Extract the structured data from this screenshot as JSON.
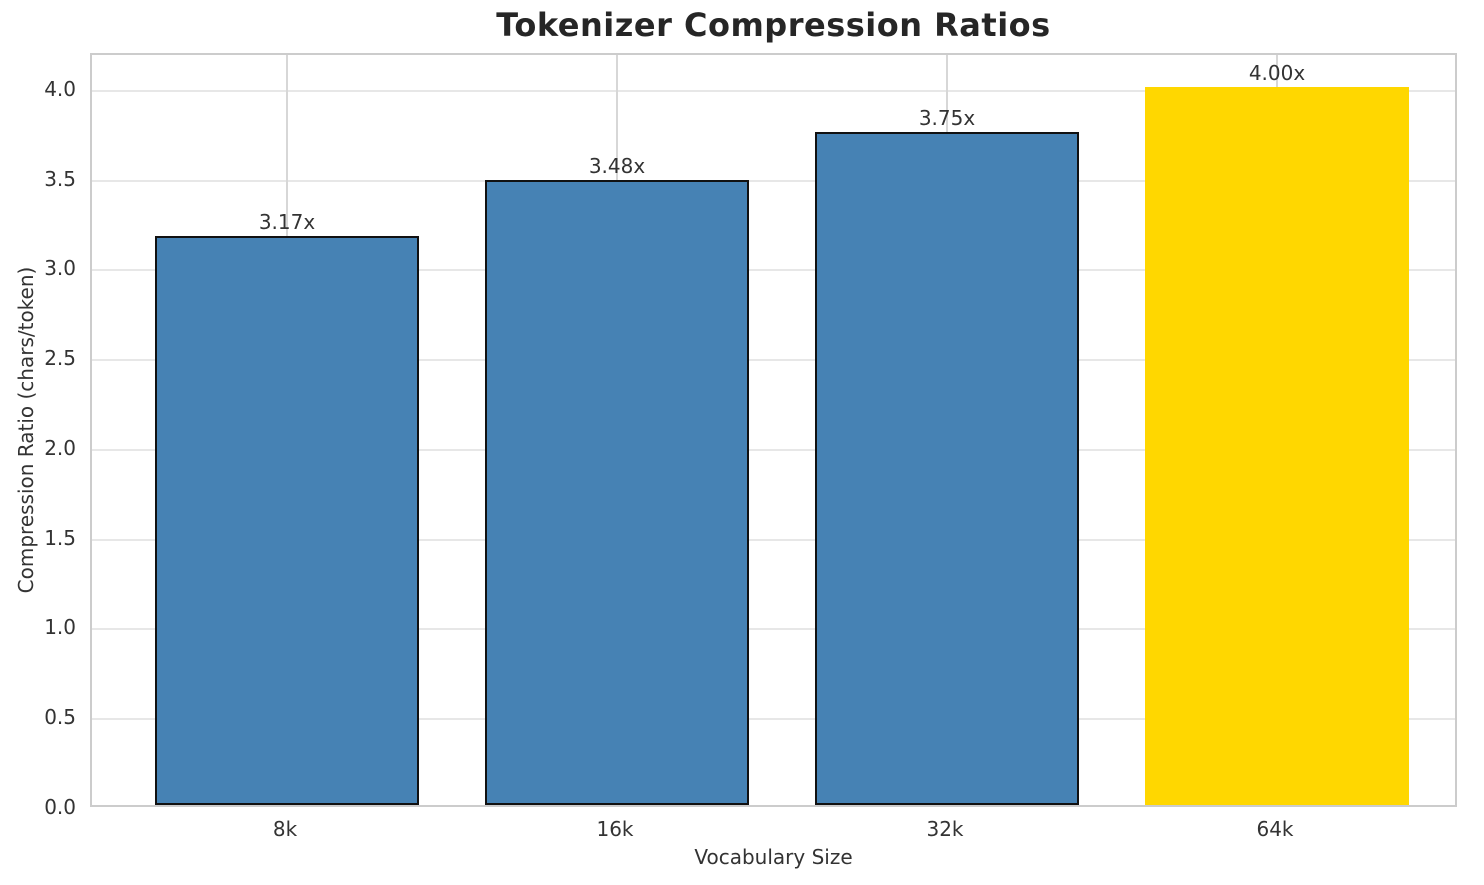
{
  "chart_data": {
    "type": "bar",
    "title": "Tokenizer Compression Ratios",
    "xlabel": "Vocabulary Size",
    "ylabel": "Compression Ratio (chars/token)",
    "categories": [
      "8k",
      "16k",
      "32k",
      "64k"
    ],
    "values": [
      3.17,
      3.48,
      3.75,
      4.0
    ],
    "bar_labels": [
      "3.17x",
      "3.48x",
      "3.75x",
      "4.00x"
    ],
    "bar_colors": [
      "#4682B4",
      "#4682B4",
      "#4682B4",
      "#FFD700"
    ],
    "bar_edge_colors": [
      "#111111",
      "#111111",
      "#111111",
      "#FFD700"
    ],
    "ylim": [
      0,
      4.2
    ],
    "yticks": [
      0.0,
      0.5,
      1.0,
      1.5,
      2.0,
      2.5,
      3.0,
      3.5,
      4.0
    ],
    "ytick_labels": [
      "0.0",
      "0.5",
      "1.0",
      "1.5",
      "2.0",
      "2.5",
      "3.0",
      "3.5",
      "4.0"
    ],
    "grid": true,
    "legend_position": "none",
    "plot_bg_color": "#ffffff",
    "spine_color": "#cccccc",
    "hgrid_color": "#e7e7e7",
    "vgrid_color": "#d7d7d7",
    "text_color": "#333333",
    "title_color": "#262626"
  }
}
